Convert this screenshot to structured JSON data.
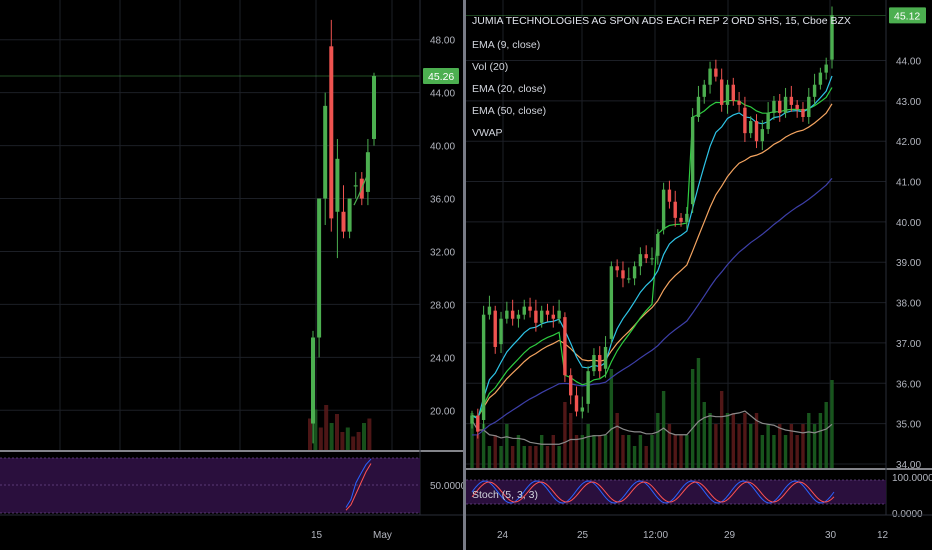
{
  "colors": {
    "background": "#000000",
    "grid": "#1c1f26",
    "up": "#26a69a",
    "up_bright": "#4caf50",
    "down": "#ef5350",
    "ema9": "#2ec4e6",
    "ema20": "#f4a460",
    "ema50": "#3d3fa8",
    "vwap": "#2ecc40",
    "vol_ma": "#8a8a8a",
    "stoch_k": "#2962ff",
    "stoch_d": "#ff5252",
    "stoch_band": "#2a0f3d",
    "price_tag": "#4caf50",
    "divider": "#d1d4dc"
  },
  "chart_data": [
    {
      "type": "candlestick",
      "pane": "left",
      "title": "",
      "ylim": [
        17,
        51
      ],
      "y_ticks": [
        "48.00",
        "44.00",
        "40.00",
        "36.00",
        "32.00",
        "28.00",
        "24.00",
        "20.00"
      ],
      "y_tick_values": [
        48,
        44,
        40,
        36,
        32,
        28,
        24,
        20
      ],
      "x_ticks": [
        "15",
        "May"
      ],
      "last_price_label": "45.26",
      "last_price": 45.26,
      "candles": [
        {
          "o": 19.0,
          "h": 26.0,
          "l": 17.5,
          "c": 25.5
        },
        {
          "o": 25.5,
          "h": 36.0,
          "l": 24.0,
          "c": 36.0
        },
        {
          "o": 36.0,
          "h": 44.0,
          "l": 34.0,
          "c": 43.0
        },
        {
          "o": 47.5,
          "h": 49.5,
          "l": 33.5,
          "c": 34.5
        },
        {
          "o": 35.0,
          "h": 40.5,
          "l": 31.5,
          "c": 39.0
        },
        {
          "o": 35.0,
          "h": 37.0,
          "l": 33.0,
          "c": 33.5
        },
        {
          "o": 33.5,
          "h": 36.0,
          "l": 33.0,
          "c": 36.0
        },
        {
          "o": 37.0,
          "h": 38.0,
          "l": 36.0,
          "c": 37.0
        },
        {
          "o": 37.5,
          "h": 38.0,
          "l": 35.5,
          "c": 36.0
        },
        {
          "o": 36.5,
          "h": 40.5,
          "l": 35.5,
          "c": 39.5
        },
        {
          "o": 40.5,
          "h": 45.5,
          "l": 40.0,
          "c": 45.26
        }
      ],
      "ema_line": [
        35.5,
        36.2,
        37.0,
        37.8
      ],
      "volume": [
        0.7,
        0.9,
        0.5,
        1.0,
        0.6,
        0.8,
        0.4,
        0.5,
        0.3,
        0.4,
        0.6,
        0.7
      ],
      "stoch": {
        "label": "",
        "level_label": "50.0000",
        "k": [
          10,
          25,
          55,
          72,
          88,
          98
        ],
        "d": [
          5,
          15,
          35,
          55,
          75,
          90
        ]
      }
    },
    {
      "type": "candlestick",
      "pane": "right",
      "title": "JUMIA TECHNOLOGIES AG SPON ADS EACH REP 2 ORD SHS, 15, Cboe BZX",
      "legend": [
        "EMA (9, close)",
        "Vol (20)",
        "EMA (20, close)",
        "EMA (50, close)",
        "VWAP"
      ],
      "ylim": [
        33.9,
        45.5
      ],
      "y_ticks": [
        "44.00",
        "43.00",
        "42.00",
        "41.00",
        "40.00",
        "39.00",
        "38.00",
        "37.00",
        "36.00",
        "35.00",
        "34.00"
      ],
      "y_tick_values": [
        44,
        43,
        42,
        41,
        40,
        39,
        38,
        37,
        36,
        35,
        34
      ],
      "x_ticks": [
        "24",
        "25",
        "12:00",
        "29",
        "30",
        "12"
      ],
      "last_price_label": "45.12",
      "last_price": 45.12,
      "closes": [
        35.2,
        34.8,
        37.7,
        37.9,
        36.9,
        37.6,
        37.8,
        37.6,
        37.7,
        37.9,
        37.8,
        37.5,
        37.8,
        37.7,
        37.6,
        37.8,
        36.2,
        35.7,
        35.3,
        35.4,
        36.3,
        36.7,
        36.3,
        36.9,
        38.9,
        38.8,
        38.6,
        38.6,
        38.9,
        39.2,
        39.1,
        39.1,
        39.7,
        40.8,
        40.5,
        40.1,
        40.0,
        40.2,
        42.6,
        43.1,
        43.4,
        43.8,
        43.6,
        42.9,
        43.4,
        43.0,
        42.9,
        42.2,
        42.5,
        42.0,
        42.3,
        42.7,
        43.0,
        42.7,
        43.1,
        42.9,
        42.8,
        42.6,
        43.1,
        43.4,
        43.7,
        43.9,
        45.12
      ],
      "volume": [
        0.5,
        0.3,
        0.4,
        0.2,
        0.3,
        0.2,
        0.4,
        0.2,
        0.3,
        0.2,
        0.2,
        0.2,
        0.3,
        0.2,
        0.3,
        0.2,
        0.6,
        0.5,
        0.3,
        0.3,
        0.4,
        0.3,
        0.3,
        0.3,
        0.9,
        0.5,
        0.3,
        0.3,
        0.2,
        0.3,
        0.2,
        0.3,
        0.5,
        0.7,
        0.4,
        0.3,
        0.3,
        0.3,
        0.9,
        1.0,
        0.6,
        0.5,
        0.4,
        0.7,
        0.5,
        0.5,
        0.4,
        0.5,
        0.4,
        0.5,
        0.3,
        0.4,
        0.3,
        0.4,
        0.3,
        0.4,
        0.3,
        0.4,
        0.5,
        0.4,
        0.5,
        0.6,
        0.8
      ],
      "stoch": {
        "label": "Stoch (5, 3, 3)",
        "ticks": [
          "100.0000",
          "0.0000"
        ],
        "cycles": 7
      }
    }
  ]
}
